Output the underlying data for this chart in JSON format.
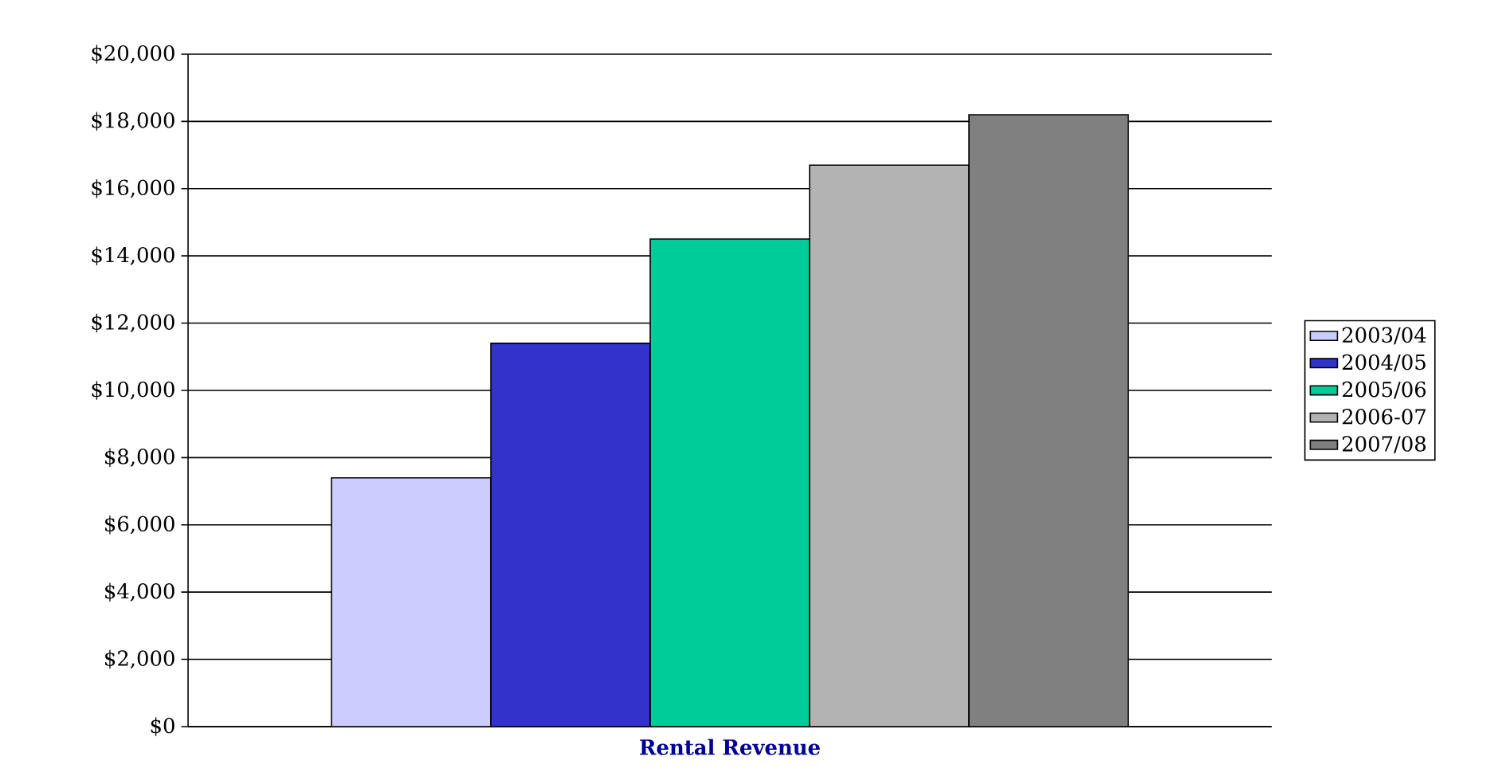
{
  "chart_data": {
    "type": "bar",
    "categories": [
      "Rental Revenue"
    ],
    "series": [
      {
        "name": "2003/04",
        "color": "#ccccff",
        "values": [
          7400
        ]
      },
      {
        "name": "2004/05",
        "color": "#3333cc",
        "values": [
          11400
        ]
      },
      {
        "name": "2005/06",
        "color": "#00cc99",
        "values": [
          14500
        ]
      },
      {
        "name": "2006-07",
        "color": "#b3b3b3",
        "values": [
          16700
        ]
      },
      {
        "name": "2007/08",
        "color": "#808080",
        "values": [
          18200
        ]
      }
    ],
    "ylim": [
      0,
      20000
    ],
    "yticks": [
      {
        "value": 0,
        "label": "$0"
      },
      {
        "value": 2000,
        "label": "$2,000"
      },
      {
        "value": 4000,
        "label": "$4,000"
      },
      {
        "value": 6000,
        "label": "$6,000"
      },
      {
        "value": 8000,
        "label": "$8,000"
      },
      {
        "value": 10000,
        "label": "$10,000"
      },
      {
        "value": 12000,
        "label": "$12,000"
      },
      {
        "value": 14000,
        "label": "$14,000"
      },
      {
        "value": 16000,
        "label": "$16,000"
      },
      {
        "value": 18000,
        "label": "$18,000"
      },
      {
        "value": 20000,
        "label": "$20,000"
      }
    ],
    "grid": "y",
    "legend": "right"
  }
}
